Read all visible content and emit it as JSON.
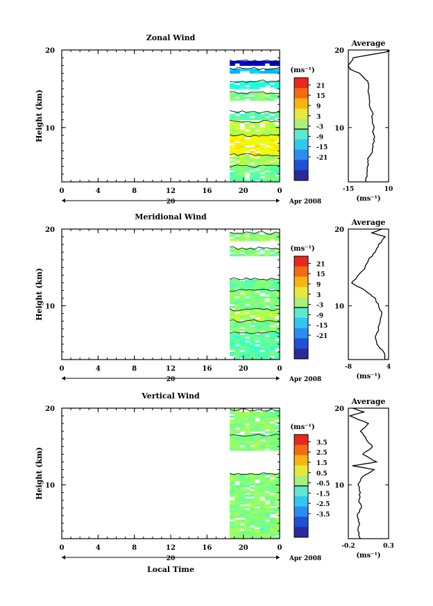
{
  "chart_data": [
    {
      "type": "heatmap",
      "title": "Zonal Wind",
      "xlabel": "",
      "ylabel": "Height (km)",
      "x_ticks": [
        "0",
        "4",
        "8",
        "12",
        "16",
        "20",
        "0"
      ],
      "xlim_hours": [
        0,
        24
      ],
      "ylim": [
        3,
        20
      ],
      "y_ticks": [
        10,
        20
      ],
      "date_labels": [
        "20",
        "Apr 2008"
      ],
      "data_start_hour": 18.5,
      "colorbar": {
        "unit": "(ms⁻¹)",
        "ticks": [
          "21",
          "15",
          "9",
          "3",
          "-3",
          "-9",
          "-15",
          "-21"
        ],
        "range": [
          -24,
          24
        ]
      },
      "bands": [
        {
          "y": [
            18.0,
            18.6
          ],
          "v": -20
        },
        {
          "y": [
            17.0,
            17.6
          ],
          "v": -9
        },
        {
          "y": [
            15.0,
            16.0
          ],
          "v": -4
        },
        {
          "y": [
            13.5,
            14.5
          ],
          "v": 0
        },
        {
          "y": [
            11.0,
            12.0
          ],
          "v": -2
        },
        {
          "y": [
            9.0,
            10.8
          ],
          "v": 3
        },
        {
          "y": [
            6.5,
            9.0
          ],
          "v": 6
        },
        {
          "y": [
            5.0,
            6.5
          ],
          "v": 2
        },
        {
          "y": [
            3.0,
            5.0
          ],
          "v": -1
        }
      ],
      "average": {
        "title": "Average",
        "xlim": [
          -15,
          10
        ],
        "x_ticks": [
          "-15",
          "10"
        ],
        "unit": "(ms⁻¹)",
        "profile": [
          [
            3,
            -4
          ],
          [
            4,
            -3.5
          ],
          [
            5,
            -3
          ],
          [
            6,
            -3
          ],
          [
            7,
            0
          ],
          [
            8,
            0.5
          ],
          [
            9,
            1
          ],
          [
            9.5,
            0
          ],
          [
            10,
            1
          ],
          [
            11,
            0
          ],
          [
            12,
            0
          ],
          [
            13,
            -2
          ],
          [
            14,
            -2
          ],
          [
            15,
            -2.5
          ],
          [
            16,
            -3
          ],
          [
            17,
            -8
          ],
          [
            17.5,
            -14
          ],
          [
            18,
            -15
          ],
          [
            19,
            -12
          ],
          [
            19.8,
            10
          ],
          [
            20,
            10
          ]
        ]
      }
    },
    {
      "type": "heatmap",
      "title": "Meridional Wind",
      "xlabel": "",
      "ylabel": "Height (km)",
      "x_ticks": [
        "0",
        "4",
        "8",
        "12",
        "16",
        "20",
        "0"
      ],
      "xlim_hours": [
        0,
        24
      ],
      "ylim": [
        3,
        20
      ],
      "y_ticks": [
        10,
        20
      ],
      "date_labels": [
        "20",
        "Apr 2008"
      ],
      "data_start_hour": 18.5,
      "colorbar": {
        "unit": "(ms⁻¹)",
        "ticks": [
          "21",
          "15",
          "9",
          "3",
          "-3",
          "-9",
          "-15",
          "-21"
        ],
        "range": [
          -24,
          24
        ]
      },
      "bands": [
        {
          "y": [
            18.5,
            19.5
          ],
          "v": 1
        },
        {
          "y": [
            16.5,
            17.5
          ],
          "v": 0
        },
        {
          "y": [
            12.0,
            13.5
          ],
          "v": -1
        },
        {
          "y": [
            9.5,
            12.0
          ],
          "v": 0
        },
        {
          "y": [
            8.0,
            9.5
          ],
          "v": 2
        },
        {
          "y": [
            6.5,
            8.0
          ],
          "v": 0
        },
        {
          "y": [
            3.0,
            6.5
          ],
          "v": -2
        }
      ],
      "average": {
        "title": "Average",
        "xlim": [
          -8,
          4
        ],
        "x_ticks": [
          "-8",
          "4"
        ],
        "unit": "(ms⁻¹)",
        "profile": [
          [
            3,
            3
          ],
          [
            4,
            2.5
          ],
          [
            5,
            0.5
          ],
          [
            6,
            0
          ],
          [
            7,
            1
          ],
          [
            8,
            1.5
          ],
          [
            9,
            2
          ],
          [
            10,
            1
          ],
          [
            11,
            0
          ],
          [
            12,
            -3
          ],
          [
            13,
            -7
          ],
          [
            14,
            -5
          ],
          [
            15,
            -3
          ],
          [
            16,
            -2
          ],
          [
            17,
            0
          ],
          [
            18,
            1
          ],
          [
            19,
            3
          ],
          [
            19.5,
            -1
          ],
          [
            20,
            2
          ]
        ]
      }
    },
    {
      "type": "heatmap",
      "title": "Vertical Wind",
      "xlabel": "Local Time",
      "ylabel": "Height (km)",
      "x_ticks": [
        "0",
        "4",
        "8",
        "12",
        "16",
        "20",
        "0"
      ],
      "xlim_hours": [
        0,
        24
      ],
      "ylim": [
        3,
        20
      ],
      "y_ticks": [
        10,
        20
      ],
      "date_labels": [
        "20",
        "Apr 2008"
      ],
      "data_start_hour": 18.5,
      "colorbar": {
        "unit": "(ms⁻¹)",
        "ticks": [
          "3.5",
          "2.5",
          "1.5",
          "0.5",
          "-0.5",
          "-1.5",
          "-2.5",
          "-3.5"
        ],
        "range": [
          -4,
          4
        ]
      },
      "bands": [
        {
          "y": [
            16.5,
            19.8
          ],
          "v": 0.05
        },
        {
          "y": [
            14.5,
            16.5
          ],
          "v": 0.1
        },
        {
          "y": [
            3.0,
            11.5
          ],
          "v": 0.05
        }
      ],
      "average": {
        "title": "Average",
        "xlim": [
          -0.2,
          0.3
        ],
        "x_ticks": [
          "-0.2",
          "0.3"
        ],
        "unit": "(ms⁻¹)",
        "profile": [
          [
            3,
            -0.05
          ],
          [
            4,
            -0.08
          ],
          [
            5,
            -0.06
          ],
          [
            6,
            -0.09
          ],
          [
            7,
            -0.04
          ],
          [
            8,
            -0.07
          ],
          [
            9,
            -0.05
          ],
          [
            10,
            -0.08
          ],
          [
            11,
            -0.03
          ],
          [
            12,
            0.12
          ],
          [
            12.5,
            -0.15
          ],
          [
            13,
            0.15
          ],
          [
            14,
            -0.02
          ],
          [
            15,
            0.1
          ],
          [
            16,
            0.02
          ],
          [
            17,
            -0.05
          ],
          [
            18,
            0.05
          ],
          [
            19,
            -0.18
          ],
          [
            19.5,
            0.0
          ],
          [
            20,
            -0.15
          ]
        ]
      }
    }
  ]
}
